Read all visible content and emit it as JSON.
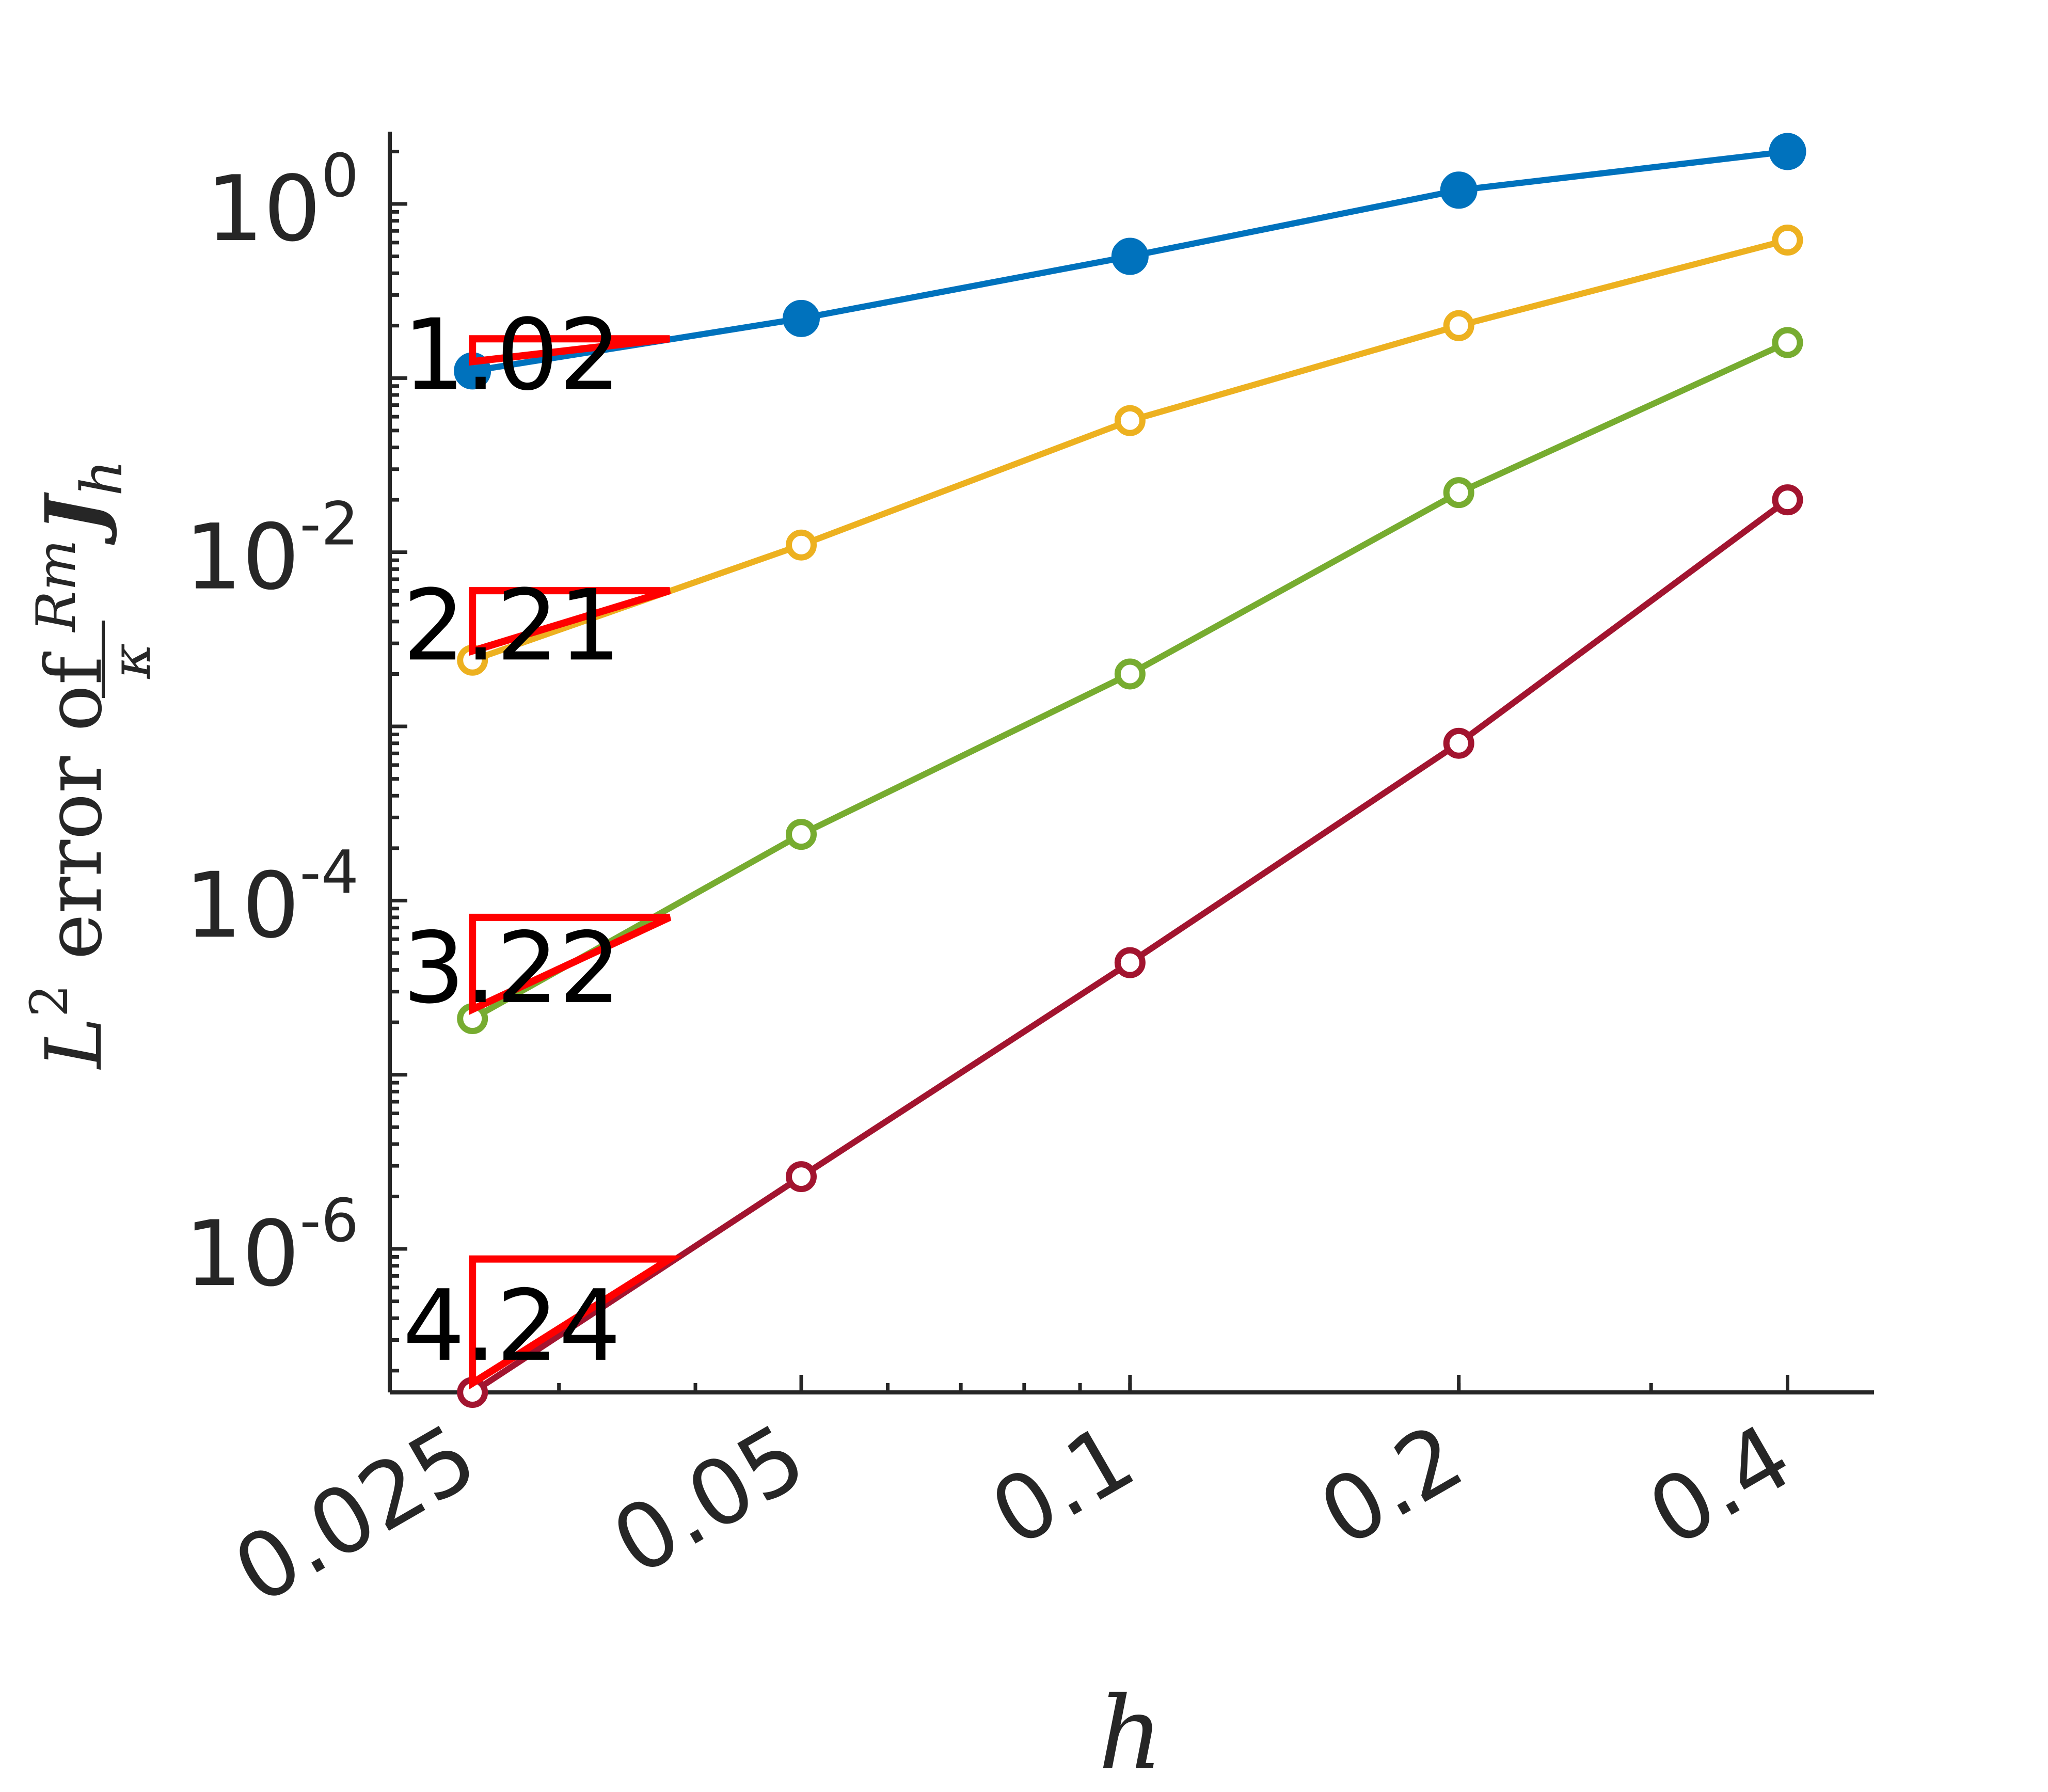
{
  "chart_data": {
    "type": "line",
    "xscale": "log",
    "yscale": "log",
    "xlabel": "h",
    "ylabel": {
      "prefix": "L",
      "exponent": "2",
      "middle": " error of ",
      "frac_num": "Rm",
      "frac_den": "κ",
      "symbol": "J",
      "subscript": "h"
    },
    "x": [
      0.025,
      0.05,
      0.1,
      0.2,
      0.4
    ],
    "xticks": [
      "0.025",
      "0.05",
      "0.1",
      "0.2",
      "0.4"
    ],
    "yticks": [
      {
        "value": 1,
        "base": "10",
        "exp": "0"
      },
      {
        "value": 0.01,
        "base": "10",
        "exp": "-2"
      },
      {
        "value": 0.0001,
        "base": "10",
        "exp": "-4"
      },
      {
        "value": 1e-06,
        "base": "10",
        "exp": "-6"
      }
    ],
    "xlim": [
      0.021,
      0.48
    ],
    "ylim": [
      1.5e-07,
      2.6
    ],
    "grid": false,
    "legend": "none",
    "series": [
      {
        "color": "#0072BD",
        "marker": "filled-circle",
        "values": [
          0.11,
          0.22,
          0.5,
          1.2,
          2.0
        ],
        "rate": "1.02"
      },
      {
        "color": "#EDB120",
        "marker": "open-circle",
        "values": [
          0.0024,
          0.011,
          0.057,
          0.2,
          0.62
        ],
        "rate": "2.21"
      },
      {
        "color": "#77AC30",
        "marker": "open-circle",
        "values": [
          2.1e-05,
          0.00024,
          0.002,
          0.022,
          0.16
        ],
        "rate": "3.22"
      },
      {
        "color": "#A2142F",
        "marker": "open-circle",
        "values": [
          1.5e-07,
          2.6e-06,
          4.4e-05,
          0.0008,
          0.02
        ],
        "rate": "4.24"
      }
    ],
    "triangle_color": "#FF0000"
  }
}
